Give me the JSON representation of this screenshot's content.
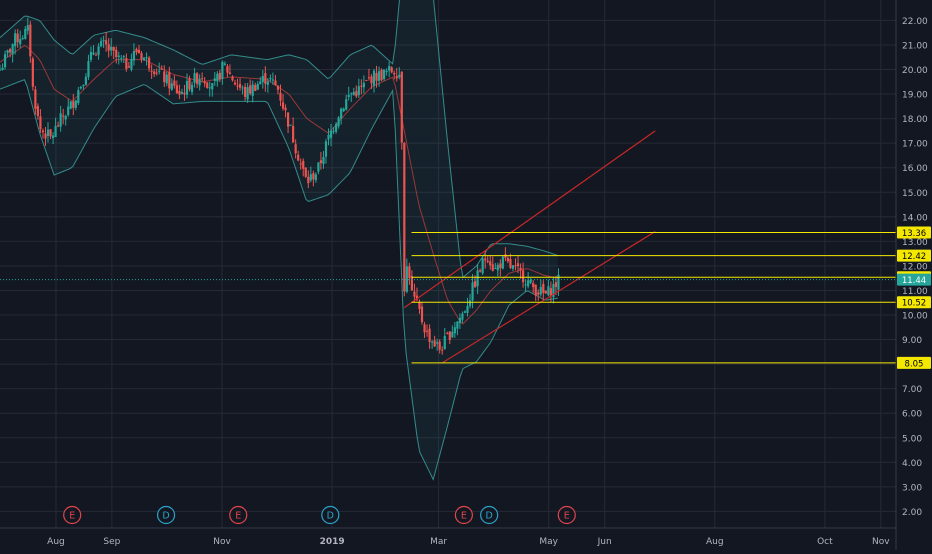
{
  "chart_data": {
    "type": "candlestick",
    "title": "",
    "xlabel": "",
    "ylabel": "",
    "ylim": [
      1.3,
      22.7
    ],
    "grid": true,
    "colors": {
      "background": "#131722",
      "grid": "#262a36",
      "up": "#26a69a",
      "down": "#ef5350",
      "bollinger": "#3fb1ad",
      "sma": "#a83b3b",
      "channel": "#c62828",
      "level": "#f5e800",
      "axis_text": "#b2b5be"
    },
    "y_ticks": [
      "22.00",
      "21.00",
      "20.00",
      "19.00",
      "18.00",
      "17.00",
      "16.00",
      "15.00",
      "14.00",
      "13.00",
      "12.00",
      "11.00",
      "10.00",
      "9.00",
      "8.00",
      "7.00",
      "6.00",
      "5.00",
      "4.00",
      "3.00",
      "2.00"
    ],
    "x_ticks": [
      {
        "label": "Aug",
        "day": 31
      },
      {
        "label": "Sep",
        "day": 62
      },
      {
        "label": "Nov",
        "day": 123
      },
      {
        "label": "2019",
        "day": 184
      },
      {
        "label": "Mar",
        "day": 243
      },
      {
        "label": "May",
        "day": 304
      },
      {
        "label": "Jun",
        "day": 335
      },
      {
        "label": "Aug",
        "day": 396
      },
      {
        "label": "Oct",
        "day": 457
      },
      {
        "label": "Nov",
        "day": 488
      }
    ],
    "price_levels": [
      {
        "label": "13.36",
        "value": 13.36
      },
      {
        "label": "12.42",
        "value": 12.42
      },
      {
        "label": "11.54",
        "value": 11.54
      },
      {
        "label": "10.52",
        "value": 10.52
      },
      {
        "label": "8.05",
        "value": 8.05
      }
    ],
    "last_price": {
      "label": "11.44",
      "value": 11.44
    },
    "events": [
      {
        "label": "E",
        "kind": "earnings",
        "day": 40
      },
      {
        "label": "D",
        "kind": "dividend",
        "day": 92
      },
      {
        "label": "E",
        "kind": "earnings",
        "day": 132
      },
      {
        "label": "D",
        "kind": "dividend",
        "day": 183
      },
      {
        "label": "E",
        "kind": "earnings",
        "day": 257
      },
      {
        "label": "D",
        "kind": "dividend",
        "day": 271
      },
      {
        "label": "E",
        "kind": "earnings",
        "day": 314
      }
    ],
    "trend_channel": {
      "lower": [
        {
          "day": 245,
          "value": 8.05
        },
        {
          "day": 363,
          "value": 13.4
        }
      ],
      "upper": [
        {
          "day": 224,
          "value": 10.3
        },
        {
          "day": 363,
          "value": 17.5
        }
      ]
    },
    "price_path": [
      {
        "day": 0,
        "value": 20.0
      },
      {
        "day": 8,
        "value": 21.2
      },
      {
        "day": 16,
        "value": 21.6
      },
      {
        "day": 18,
        "value": 19.3
      },
      {
        "day": 22,
        "value": 17.6
      },
      {
        "day": 28,
        "value": 17.2
      },
      {
        "day": 34,
        "value": 18.0
      },
      {
        "day": 40,
        "value": 18.6
      },
      {
        "day": 46,
        "value": 19.6
      },
      {
        "day": 52,
        "value": 20.8
      },
      {
        "day": 58,
        "value": 21.0
      },
      {
        "day": 64,
        "value": 20.5
      },
      {
        "day": 70,
        "value": 20.2
      },
      {
        "day": 76,
        "value": 20.8
      },
      {
        "day": 82,
        "value": 20.3
      },
      {
        "day": 88,
        "value": 19.9
      },
      {
        "day": 94,
        "value": 19.4
      },
      {
        "day": 100,
        "value": 19.0
      },
      {
        "day": 106,
        "value": 19.5
      },
      {
        "day": 112,
        "value": 19.8
      },
      {
        "day": 118,
        "value": 19.2
      },
      {
        "day": 124,
        "value": 20.2
      },
      {
        "day": 130,
        "value": 19.5
      },
      {
        "day": 136,
        "value": 19.0
      },
      {
        "day": 142,
        "value": 19.4
      },
      {
        "day": 148,
        "value": 19.7
      },
      {
        "day": 154,
        "value": 19.2
      },
      {
        "day": 160,
        "value": 17.8
      },
      {
        "day": 166,
        "value": 16.3
      },
      {
        "day": 170,
        "value": 15.4
      },
      {
        "day": 176,
        "value": 15.9
      },
      {
        "day": 182,
        "value": 17.2
      },
      {
        "day": 188,
        "value": 18.3
      },
      {
        "day": 194,
        "value": 19.0
      },
      {
        "day": 200,
        "value": 19.2
      },
      {
        "day": 206,
        "value": 19.7
      },
      {
        "day": 212,
        "value": 19.8
      },
      {
        "day": 218,
        "value": 20.0
      },
      {
        "day": 222,
        "value": 19.8
      },
      {
        "day": 224,
        "value": 11.2
      },
      {
        "day": 226,
        "value": 12.2
      },
      {
        "day": 228,
        "value": 10.9
      },
      {
        "day": 232,
        "value": 10.2
      },
      {
        "day": 236,
        "value": 9.3
      },
      {
        "day": 240,
        "value": 8.9
      },
      {
        "day": 244,
        "value": 8.6
      },
      {
        "day": 248,
        "value": 9.1
      },
      {
        "day": 252,
        "value": 9.6
      },
      {
        "day": 256,
        "value": 10.0
      },
      {
        "day": 260,
        "value": 10.7
      },
      {
        "day": 264,
        "value": 11.5
      },
      {
        "day": 268,
        "value": 12.2
      },
      {
        "day": 270,
        "value": 12.5
      },
      {
        "day": 274,
        "value": 11.8
      },
      {
        "day": 278,
        "value": 12.2
      },
      {
        "day": 282,
        "value": 12.0
      },
      {
        "day": 286,
        "value": 11.8
      },
      {
        "day": 290,
        "value": 11.6
      },
      {
        "day": 294,
        "value": 11.2
      },
      {
        "day": 298,
        "value": 11.0
      },
      {
        "day": 302,
        "value": 10.8
      },
      {
        "day": 306,
        "value": 11.1
      },
      {
        "day": 310,
        "value": 11.44
      }
    ],
    "band_path": [
      {
        "day": 0,
        "upper": 21.3,
        "mid": 20.3,
        "lower": 19.2
      },
      {
        "day": 14,
        "upper": 22.2,
        "mid": 21.0,
        "lower": 19.6
      },
      {
        "day": 22,
        "upper": 22.0,
        "mid": 20.4,
        "lower": 17.4
      },
      {
        "day": 30,
        "upper": 21.2,
        "mid": 19.2,
        "lower": 15.7
      },
      {
        "day": 40,
        "upper": 20.6,
        "mid": 18.7,
        "lower": 16.0
      },
      {
        "day": 52,
        "upper": 21.4,
        "mid": 19.6,
        "lower": 17.6
      },
      {
        "day": 64,
        "upper": 21.6,
        "mid": 20.4,
        "lower": 18.9
      },
      {
        "day": 80,
        "upper": 21.3,
        "mid": 20.4,
        "lower": 19.4
      },
      {
        "day": 96,
        "upper": 20.8,
        "mid": 19.8,
        "lower": 18.6
      },
      {
        "day": 112,
        "upper": 20.2,
        "mid": 19.5,
        "lower": 18.7
      },
      {
        "day": 128,
        "upper": 20.6,
        "mid": 19.7,
        "lower": 18.7
      },
      {
        "day": 148,
        "upper": 20.4,
        "mid": 19.6,
        "lower": 18.7
      },
      {
        "day": 160,
        "upper": 20.6,
        "mid": 19.0,
        "lower": 16.8
      },
      {
        "day": 170,
        "upper": 20.4,
        "mid": 18.0,
        "lower": 14.6
      },
      {
        "day": 182,
        "upper": 19.6,
        "mid": 17.4,
        "lower": 14.9
      },
      {
        "day": 194,
        "upper": 20.6,
        "mid": 18.4,
        "lower": 15.8
      },
      {
        "day": 206,
        "upper": 21.0,
        "mid": 19.3,
        "lower": 17.6
      },
      {
        "day": 218,
        "upper": 20.2,
        "mid": 19.7,
        "lower": 19.2
      },
      {
        "day": 224,
        "upper": 25.0,
        "mid": 17.5,
        "lower": 9.0
      },
      {
        "day": 232,
        "upper": 25.0,
        "mid": 14.5,
        "lower": 4.5
      },
      {
        "day": 240,
        "upper": 23.0,
        "mid": 12.5,
        "lower": 3.3
      },
      {
        "day": 248,
        "upper": 17.0,
        "mid": 10.6,
        "lower": 5.5
      },
      {
        "day": 256,
        "upper": 11.5,
        "mid": 9.6,
        "lower": 7.8
      },
      {
        "day": 264,
        "upper": 12.0,
        "mid": 10.2,
        "lower": 8.1
      },
      {
        "day": 272,
        "upper": 12.9,
        "mid": 11.0,
        "lower": 8.9
      },
      {
        "day": 282,
        "upper": 12.9,
        "mid": 11.7,
        "lower": 10.4
      },
      {
        "day": 292,
        "upper": 12.8,
        "mid": 11.9,
        "lower": 11.0
      },
      {
        "day": 302,
        "upper": 12.6,
        "mid": 11.6,
        "lower": 10.6
      },
      {
        "day": 310,
        "upper": 12.4,
        "mid": 11.5,
        "lower": 10.7
      }
    ]
  }
}
